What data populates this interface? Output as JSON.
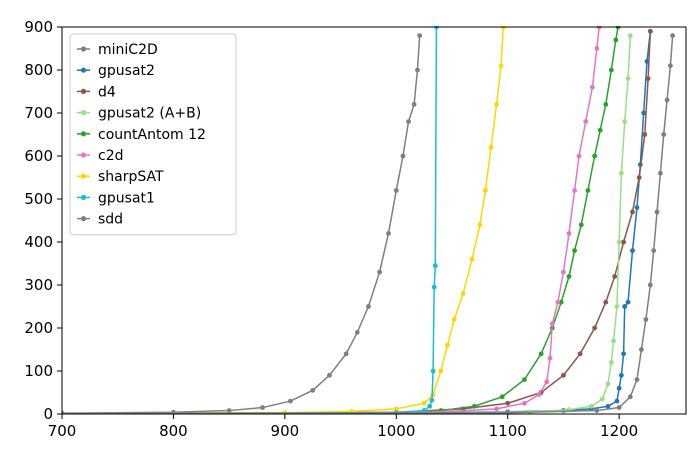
{
  "chart_data": {
    "type": "line",
    "title": "",
    "xlabel": "",
    "ylabel": "",
    "xlim": [
      700,
      1260
    ],
    "ylim": [
      0,
      900
    ],
    "x_ticks": [
      700,
      800,
      900,
      1000,
      1100,
      1200
    ],
    "y_ticks": [
      0,
      100,
      200,
      300,
      400,
      500,
      600,
      700,
      800,
      900
    ],
    "grid": false,
    "legend_position": "top-left",
    "series": [
      {
        "name": "miniC2D",
        "color": "#7f7f7f",
        "points": [
          [
            700,
            2
          ],
          [
            800,
            4
          ],
          [
            850,
            8
          ],
          [
            880,
            15
          ],
          [
            905,
            30
          ],
          [
            925,
            55
          ],
          [
            940,
            90
          ],
          [
            955,
            140
          ],
          [
            965,
            190
          ],
          [
            975,
            250
          ],
          [
            985,
            330
          ],
          [
            993,
            420
          ],
          [
            1000,
            520
          ],
          [
            1006,
            600
          ],
          [
            1011,
            680
          ],
          [
            1016,
            720
          ],
          [
            1019,
            800
          ],
          [
            1021,
            880
          ]
        ]
      },
      {
        "name": "gpusat2",
        "color": "#1f77b4",
        "points": [
          [
            700,
            1
          ],
          [
            1000,
            2
          ],
          [
            1100,
            5
          ],
          [
            1150,
            8
          ],
          [
            1175,
            12
          ],
          [
            1190,
            18
          ],
          [
            1198,
            30
          ],
          [
            1200,
            60
          ],
          [
            1202,
            90
          ],
          [
            1204,
            140
          ],
          [
            1205,
            250
          ],
          [
            1208,
            260
          ],
          [
            1212,
            380
          ],
          [
            1216,
            480
          ],
          [
            1219,
            580
          ],
          [
            1222,
            700
          ],
          [
            1225,
            820
          ],
          [
            1228,
            890
          ]
        ]
      },
      {
        "name": "d4",
        "color": "#8c564b",
        "points": [
          [
            700,
            1
          ],
          [
            1000,
            4
          ],
          [
            1060,
            12
          ],
          [
            1100,
            25
          ],
          [
            1130,
            50
          ],
          [
            1150,
            90
          ],
          [
            1165,
            140
          ],
          [
            1178,
            200
          ],
          [
            1188,
            260
          ],
          [
            1196,
            320
          ],
          [
            1204,
            400
          ],
          [
            1212,
            470
          ],
          [
            1218,
            550
          ],
          [
            1223,
            650
          ],
          [
            1226,
            780
          ],
          [
            1228,
            890
          ]
        ]
      },
      {
        "name": "gpusat2 (A+B)",
        "color": "#98df8a",
        "points": [
          [
            700,
            1
          ],
          [
            1050,
            2
          ],
          [
            1120,
            5
          ],
          [
            1155,
            10
          ],
          [
            1175,
            18
          ],
          [
            1185,
            35
          ],
          [
            1190,
            70
          ],
          [
            1193,
            120
          ],
          [
            1195,
            170
          ],
          [
            1198,
            250
          ],
          [
            1200,
            400
          ],
          [
            1202,
            560
          ],
          [
            1205,
            680
          ],
          [
            1208,
            780
          ],
          [
            1210,
            880
          ]
        ]
      },
      {
        "name": "countAntom 12",
        "color": "#2ca02c",
        "points": [
          [
            700,
            1
          ],
          [
            1000,
            3
          ],
          [
            1040,
            8
          ],
          [
            1070,
            18
          ],
          [
            1095,
            40
          ],
          [
            1115,
            80
          ],
          [
            1130,
            140
          ],
          [
            1140,
            200
          ],
          [
            1148,
            260
          ],
          [
            1155,
            320
          ],
          [
            1160,
            380
          ],
          [
            1166,
            440
          ],
          [
            1172,
            520
          ],
          [
            1178,
            600
          ],
          [
            1183,
            660
          ],
          [
            1188,
            720
          ],
          [
            1193,
            800
          ],
          [
            1197,
            870
          ],
          [
            1199,
            900
          ]
        ]
      },
      {
        "name": "c2d",
        "color": "#e377c2",
        "points": [
          [
            700,
            1
          ],
          [
            1000,
            3
          ],
          [
            1050,
            6
          ],
          [
            1090,
            12
          ],
          [
            1115,
            25
          ],
          [
            1128,
            45
          ],
          [
            1135,
            75
          ],
          [
            1138,
            130
          ],
          [
            1140,
            210
          ],
          [
            1145,
            260
          ],
          [
            1150,
            330
          ],
          [
            1155,
            420
          ],
          [
            1160,
            520
          ],
          [
            1164,
            600
          ],
          [
            1170,
            680
          ],
          [
            1176,
            760
          ],
          [
            1180,
            850
          ],
          [
            1182,
            900
          ]
        ]
      },
      {
        "name": "sharpSAT",
        "color": "#ffd700",
        "points": [
          [
            700,
            1
          ],
          [
            900,
            3
          ],
          [
            960,
            6
          ],
          [
            1000,
            12
          ],
          [
            1025,
            25
          ],
          [
            1033,
            45
          ],
          [
            1040,
            100
          ],
          [
            1046,
            160
          ],
          [
            1052,
            220
          ],
          [
            1060,
            280
          ],
          [
            1068,
            360
          ],
          [
            1075,
            440
          ],
          [
            1080,
            520
          ],
          [
            1085,
            620
          ],
          [
            1090,
            720
          ],
          [
            1094,
            810
          ],
          [
            1096,
            900
          ]
        ]
      },
      {
        "name": "gpusat1",
        "color": "#17becf",
        "points": [
          [
            700,
            1
          ],
          [
            1000,
            3
          ],
          [
            1025,
            8
          ],
          [
            1030,
            18
          ],
          [
            1032,
            32
          ],
          [
            1033,
            100
          ],
          [
            1034,
            295
          ],
          [
            1035,
            345
          ],
          [
            1036,
            900
          ]
        ]
      },
      {
        "name": "sdd",
        "color": "#7f7f7f",
        "points": [
          [
            700,
            1
          ],
          [
            1100,
            3
          ],
          [
            1180,
            8
          ],
          [
            1200,
            15
          ],
          [
            1210,
            40
          ],
          [
            1216,
            80
          ],
          [
            1220,
            150
          ],
          [
            1224,
            220
          ],
          [
            1228,
            300
          ],
          [
            1231,
            380
          ],
          [
            1234,
            470
          ],
          [
            1237,
            560
          ],
          [
            1240,
            650
          ],
          [
            1243,
            730
          ],
          [
            1246,
            810
          ],
          [
            1248,
            880
          ]
        ]
      }
    ]
  }
}
